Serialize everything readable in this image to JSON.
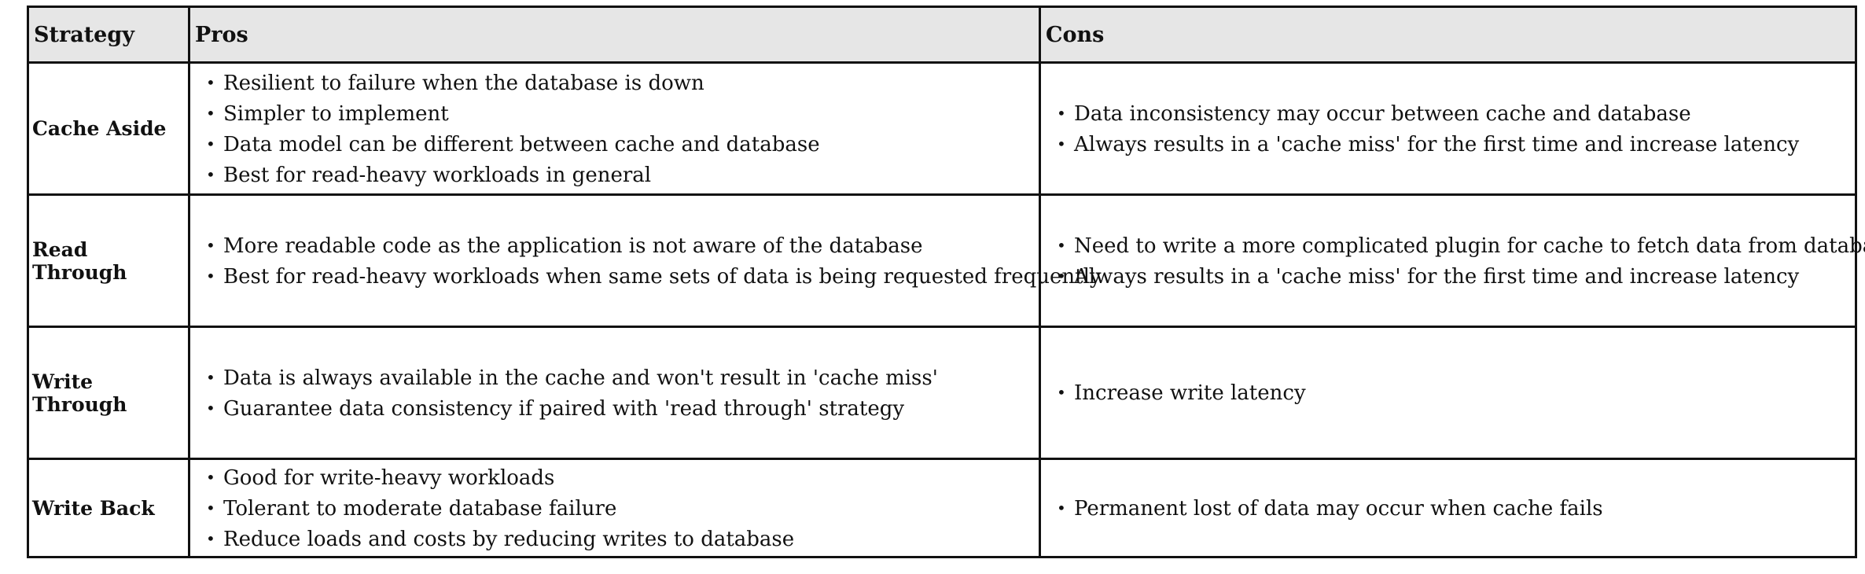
{
  "table": {
    "headers": [
      "Strategy",
      "Pros",
      "Cons"
    ],
    "rows": [
      {
        "strategy": "Cache Aside",
        "pros": [
          "Resilient to failure when the database is down",
          "Simpler to implement",
          "Data model can be different between cache and database",
          "Best for read-heavy workloads in general"
        ],
        "cons": [
          "Data inconsistency may occur between cache and database",
          "Always results in a 'cache miss' for the first time and increase latency"
        ]
      },
      {
        "strategy": "Read Through",
        "pros": [
          "More readable code as the application is not aware of the database",
          "Best for read-heavy workloads when same sets of data is being requested frequently"
        ],
        "cons": [
          "Need to write a more complicated plugin for cache to fetch data from database",
          "Always results in a 'cache miss' for the first time and increase latency"
        ]
      },
      {
        "strategy": "Write Through",
        "pros": [
          "Data is always available in the cache and won't result in 'cache miss'",
          "Guarantee data consistency if paired with 'read through' strategy"
        ],
        "cons": [
          "Increase write latency"
        ]
      },
      {
        "strategy": "Write Back",
        "pros": [
          "Good for write-heavy workloads",
          "Tolerant to moderate database failure",
          "Reduce loads and costs by reducing writes to database"
        ],
        "cons": [
          "Permanent lost of data may occur when cache fails"
        ]
      }
    ]
  }
}
